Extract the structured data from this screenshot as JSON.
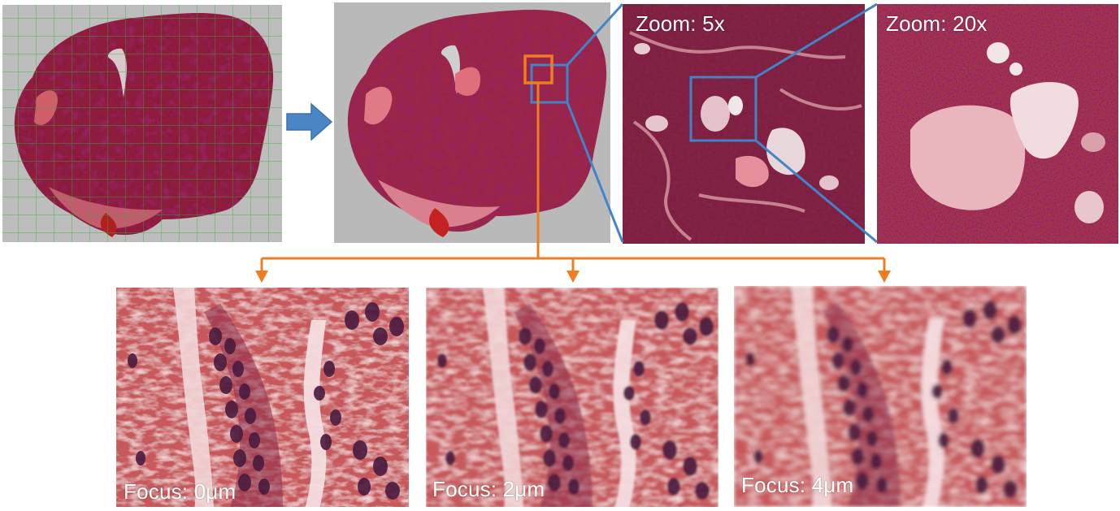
{
  "zoom_panels": [
    {
      "label": "Zoom: 5x"
    },
    {
      "label": "Zoom: 20x"
    }
  ],
  "focus_panels": [
    {
      "label": "Focus: 0μm"
    },
    {
      "label": "Focus: 2μm"
    },
    {
      "label": "Focus: 4μm"
    }
  ],
  "colors": {
    "zoom_box": "#3f86c9",
    "focus_marker": "#ef7d22",
    "grid_lines": "#2f9e2f",
    "arrow_fill": "#4a86c5",
    "slide_background": "#b8b8b8",
    "tissue_dark": "#6e1430",
    "tissue_light": "#c9485f",
    "stroma_pink": "#c45a5e"
  },
  "icons": {
    "process_arrow": "right-arrow-icon",
    "branch_arrow": "down-arrow-icon"
  }
}
